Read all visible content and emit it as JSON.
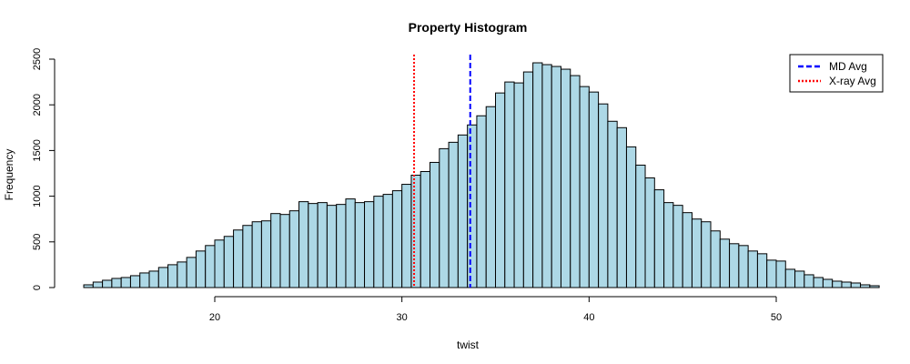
{
  "chart_data": {
    "type": "bar",
    "title": "Property Histogram",
    "xlabel": "twist",
    "ylabel": "Frequency",
    "xlim": [
      13,
      54
    ],
    "ylim": [
      0,
      2500
    ],
    "xticks": [
      20,
      30,
      40,
      50
    ],
    "yticks": [
      0,
      500,
      1000,
      1500,
      2000,
      2500
    ],
    "bin_start": 13,
    "bin_width": 0.5,
    "bar_color": "#add8e6",
    "bar_edge_color": "#000000",
    "values": [
      30,
      60,
      80,
      100,
      110,
      130,
      160,
      180,
      220,
      250,
      280,
      330,
      400,
      460,
      520,
      560,
      630,
      680,
      720,
      730,
      810,
      800,
      840,
      940,
      920,
      930,
      900,
      910,
      970,
      930,
      940,
      1000,
      1020,
      1060,
      1130,
      1230,
      1270,
      1370,
      1520,
      1590,
      1670,
      1780,
      1880,
      1980,
      2130,
      2250,
      2240,
      2360,
      2460,
      2440,
      2420,
      2390,
      2320,
      2200,
      2140,
      2010,
      1820,
      1750,
      1540,
      1340,
      1200,
      1070,
      930,
      900,
      820,
      750,
      720,
      620,
      530,
      480,
      460,
      400,
      370,
      300,
      290,
      200,
      180,
      140,
      110,
      90,
      70,
      60,
      50,
      30,
      20
    ],
    "vlines": [
      {
        "name": "MD Avg",
        "x": 33.65,
        "color": "#0000ff",
        "style": "dashed"
      },
      {
        "name": "X-ray Avg",
        "x": 30.65,
        "color": "#ff0000",
        "style": "dotted"
      }
    ],
    "legend": {
      "position": "top-right",
      "entries": [
        {
          "label": "MD Avg",
          "color": "#0000ff",
          "style": "dashed"
        },
        {
          "label": "X-ray Avg",
          "color": "#ff0000",
          "style": "dotted"
        }
      ]
    }
  }
}
